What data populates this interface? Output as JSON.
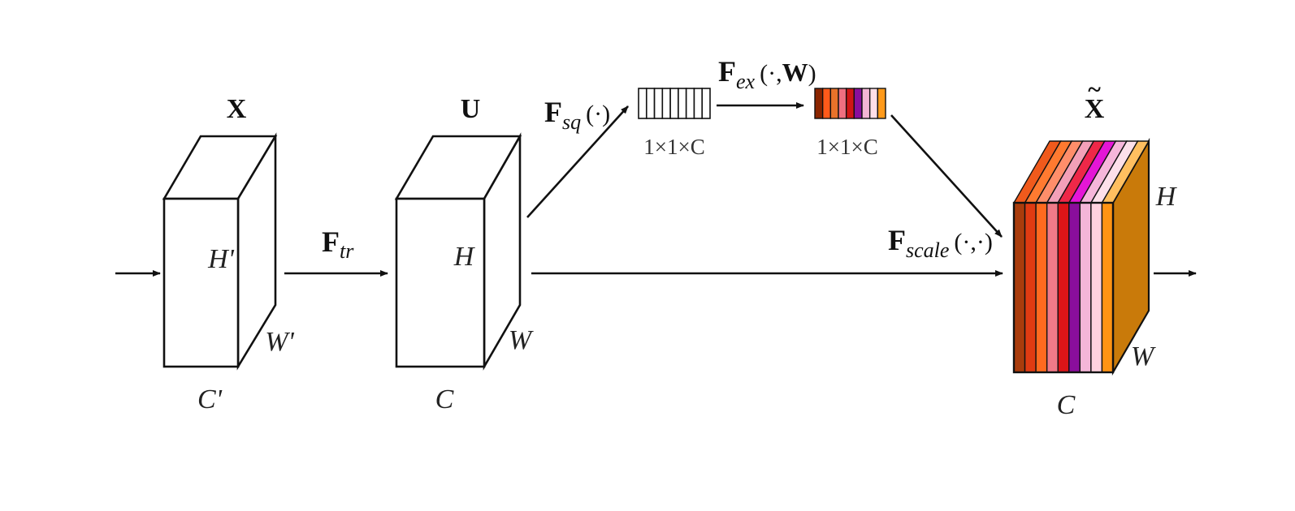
{
  "tensors": {
    "x": {
      "name": "X",
      "height": "H'",
      "width": "W'",
      "channels": "C'"
    },
    "u": {
      "name": "U",
      "height": "H",
      "width": "W",
      "channels": "C"
    },
    "x_tilde": {
      "name": "X",
      "height": "H",
      "width": "W",
      "channels": "C"
    }
  },
  "ops": {
    "tr": {
      "main": "F",
      "sub": "tr"
    },
    "sq": {
      "main": "F",
      "sub": "sq",
      "args": "(·)"
    },
    "ex": {
      "main": "F",
      "sub": "ex",
      "args_pre": "(·,",
      "args_bold": "W",
      "args_post": ")"
    },
    "scale": {
      "main": "F",
      "sub": "scale",
      "args": "(·,·)"
    }
  },
  "vectors": {
    "squeezed": {
      "label": "1×1×C"
    },
    "excited": {
      "label": "1×1×C",
      "colors": [
        "#8b2500",
        "#ff5a1a",
        "#e8722a",
        "#ef6f80",
        "#d01515",
        "#8a0e9c",
        "#f3b6d4",
        "#ffdfe8",
        "#ff9a1a"
      ]
    }
  },
  "output_block": {
    "front_colors": [
      "#a93c0c",
      "#e03b12",
      "#ff6a1f",
      "#f07a88",
      "#dc1518",
      "#8a0e9c",
      "#f4b6d8",
      "#ffd2df",
      "#ff9314"
    ],
    "top_colors": [
      "#f05a1c",
      "#ff7a30",
      "#ff8e6a",
      "#f3a0b8",
      "#ee2848",
      "#e416d6",
      "#f5b6da",
      "#fde0ea",
      "#ffbf60"
    ],
    "side_color": "#c97a0a"
  }
}
